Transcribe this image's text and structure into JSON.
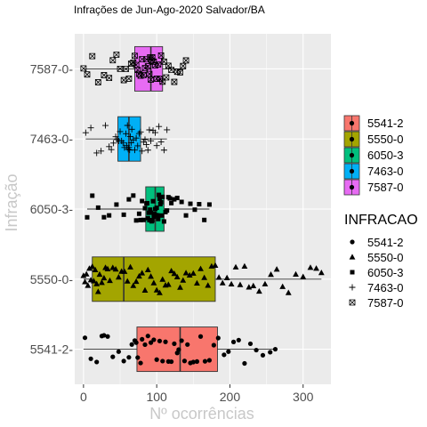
{
  "chart_data": {
    "type": "boxplot_jitter",
    "title": "Infrações de Jun-Ago-2020 Salvador/BA",
    "xlabel": "Nº ocorrências",
    "ylabel": "Infração",
    "xlim": [
      -12,
      338
    ],
    "x_ticks": [
      0,
      100,
      200,
      300
    ],
    "categories": [
      "5541-2",
      "5550-0",
      "6050-3",
      "7463-0",
      "7587-0"
    ],
    "category_tick_labels": [
      "5541-2-",
      "5550-0-",
      "6050-3-",
      "7463-0-",
      "7587-0-"
    ],
    "orientation": "horizontal",
    "grid": true,
    "background": "#ebebeb",
    "series": [
      {
        "name": "5541-2",
        "fill": "#F8766D",
        "shape": "circle",
        "box": {
          "lower_whisker": 0,
          "q1": 73,
          "median": 132,
          "q3": 183,
          "upper_whisker": 262
        },
        "points": [
          2,
          10,
          18,
          25,
          28,
          33,
          40,
          48,
          55,
          62,
          66,
          70,
          72,
          74,
          78,
          80,
          84,
          88,
          92,
          96,
          100,
          104,
          108,
          112,
          116,
          120,
          124,
          128,
          130,
          134,
          138,
          142,
          146,
          150,
          155,
          160,
          166,
          172,
          178,
          184,
          192,
          198,
          205,
          212,
          220,
          228,
          236,
          245,
          255,
          262
        ]
      },
      {
        "name": "5550-0",
        "fill": "#A3A500",
        "shape": "triangle",
        "box": {
          "lower_whisker": 0,
          "q1": 12,
          "median": 55,
          "q3": 180,
          "upper_whisker": 325
        },
        "points": [
          0,
          2,
          4,
          6,
          8,
          10,
          12,
          14,
          16,
          18,
          20,
          22,
          25,
          28,
          30,
          33,
          36,
          40,
          44,
          48,
          52,
          56,
          60,
          64,
          68,
          72,
          76,
          80,
          84,
          88,
          92,
          96,
          100,
          104,
          108,
          112,
          116,
          120,
          124,
          128,
          132,
          136,
          140,
          145,
          150,
          155,
          160,
          165,
          170,
          175,
          180,
          185,
          190,
          196,
          202,
          208,
          214,
          220,
          226,
          232,
          240,
          248,
          256,
          264,
          272,
          280,
          290,
          300,
          310,
          318,
          325
        ]
      },
      {
        "name": "6050-3",
        "fill": "#00BF7D",
        "shape": "square",
        "box": {
          "lower_whisker": 5,
          "q1": 85,
          "median": 98,
          "q3": 110,
          "upper_whisker": 172
        },
        "points": [
          5,
          12,
          20,
          28,
          35,
          45,
          55,
          62,
          68,
          72,
          76,
          78,
          80,
          82,
          84,
          86,
          87,
          88,
          89,
          90,
          91,
          92,
          93,
          94,
          95,
          96,
          97,
          98,
          99,
          100,
          101,
          102,
          103,
          104,
          105,
          106,
          107,
          108,
          110,
          112,
          114,
          116,
          118,
          120,
          124,
          128,
          134,
          140,
          146,
          152,
          158,
          165,
          172
        ]
      },
      {
        "name": "7463-0",
        "fill": "#00B0F6",
        "shape": "plus",
        "box": {
          "lower_whisker": 3,
          "q1": 47,
          "median": 62,
          "q3": 78,
          "upper_whisker": 114
        },
        "points": [
          3,
          10,
          18,
          24,
          30,
          35,
          38,
          41,
          44,
          46,
          48,
          50,
          52,
          54,
          56,
          58,
          59,
          60,
          61,
          62,
          63,
          64,
          65,
          66,
          68,
          70,
          72,
          74,
          76,
          78,
          80,
          82,
          84,
          86,
          88,
          90,
          92,
          95,
          98,
          100,
          103,
          106,
          110,
          114
        ]
      },
      {
        "name": "7587-0",
        "fill": "#E76BF3",
        "shape": "boxtimes",
        "box": {
          "lower_whisker": 0,
          "q1": 70,
          "median": 92,
          "q3": 108,
          "upper_whisker": 140
        },
        "points": [
          0,
          5,
          12,
          20,
          28,
          35,
          40,
          45,
          50,
          55,
          58,
          62,
          65,
          68,
          70,
          72,
          74,
          76,
          78,
          80,
          82,
          84,
          86,
          88,
          90,
          91,
          92,
          93,
          94,
          96,
          98,
          100,
          102,
          104,
          106,
          108,
          110,
          113,
          116,
          120,
          124,
          128,
          132,
          136,
          140
        ]
      }
    ],
    "legend_fill": {
      "title": "",
      "entries": [
        "5541-2",
        "5550-0",
        "6050-3",
        "7463-0",
        "7587-0"
      ]
    },
    "legend_shape": {
      "title": "INFRACAO",
      "entries": [
        "5541-2",
        "5550-0",
        "6050-3",
        "7463-0",
        "7587-0"
      ]
    },
    "legend_placement": "right"
  }
}
